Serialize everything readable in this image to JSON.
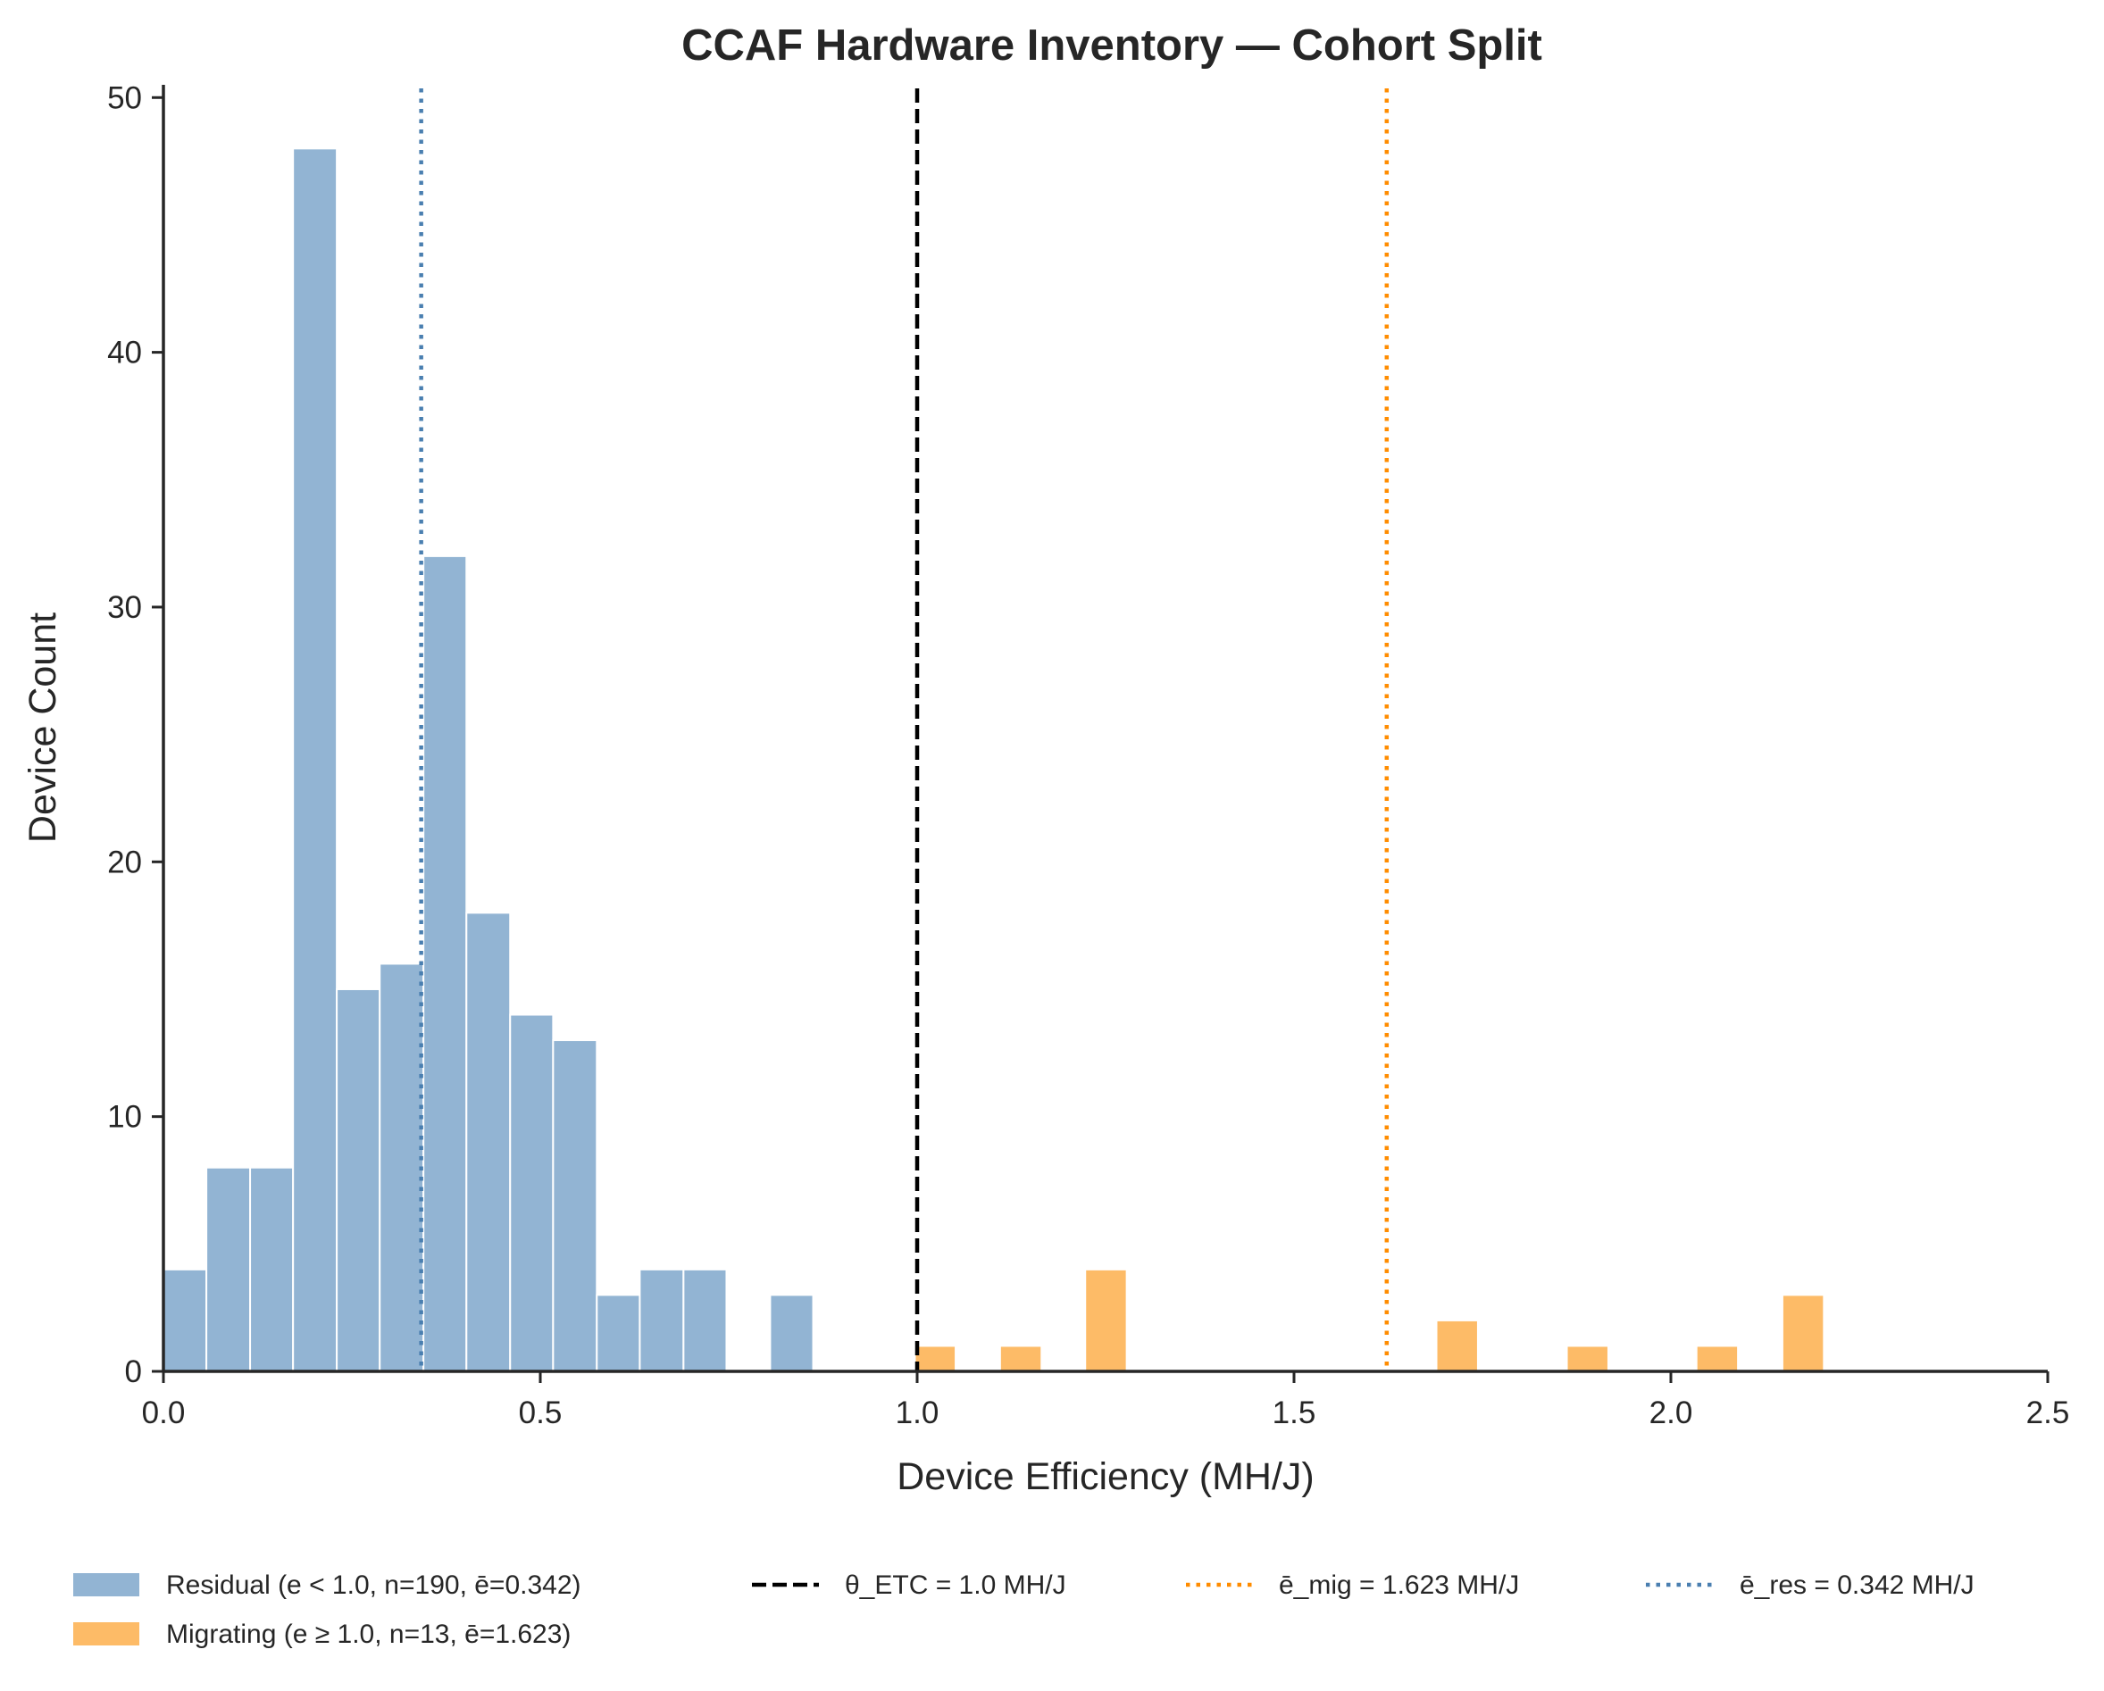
{
  "chart_data": {
    "type": "bar",
    "title": "CCAF Hardware Inventory — Cohort Split",
    "xlabel": "Device Efficiency (MH/J)",
    "ylabel": "Device Count",
    "xlim": [
      0.0,
      2.5
    ],
    "ylim": [
      0,
      50.5
    ],
    "xticks": [
      0.0,
      0.5,
      1.0,
      1.5,
      2.0,
      2.5
    ],
    "xtick_labels": [
      "0.0",
      "0.5",
      "1.0",
      "1.5",
      "2.0",
      "2.5"
    ],
    "yticks": [
      0,
      10,
      20,
      30,
      40,
      50
    ],
    "ytick_labels": [
      "0",
      "10",
      "20",
      "30",
      "40",
      "50"
    ],
    "series": [
      {
        "name": "Residual (e < 1.0, n=190, ē=0.342)",
        "color": "#92b4d3",
        "bins": [
          {
            "x0": 0.0,
            "x1": 0.057,
            "count": 4
          },
          {
            "x0": 0.057,
            "x1": 0.115,
            "count": 8
          },
          {
            "x0": 0.115,
            "x1": 0.172,
            "count": 8
          },
          {
            "x0": 0.172,
            "x1": 0.23,
            "count": 48
          },
          {
            "x0": 0.23,
            "x1": 0.287,
            "count": 15
          },
          {
            "x0": 0.287,
            "x1": 0.345,
            "count": 16
          },
          {
            "x0": 0.345,
            "x1": 0.402,
            "count": 32
          },
          {
            "x0": 0.402,
            "x1": 0.46,
            "count": 18
          },
          {
            "x0": 0.46,
            "x1": 0.517,
            "count": 14
          },
          {
            "x0": 0.517,
            "x1": 0.575,
            "count": 13
          },
          {
            "x0": 0.575,
            "x1": 0.632,
            "count": 3
          },
          {
            "x0": 0.632,
            "x1": 0.69,
            "count": 4
          },
          {
            "x0": 0.69,
            "x1": 0.747,
            "count": 4
          },
          {
            "x0": 0.805,
            "x1": 0.862,
            "count": 3
          }
        ]
      },
      {
        "name": "Migrating (e ≥ 1.0, n=13, ē=1.623)",
        "color": "#fdbb67",
        "bins": [
          {
            "x0": 0.997,
            "x1": 1.051,
            "count": 1
          },
          {
            "x0": 1.11,
            "x1": 1.165,
            "count": 1
          },
          {
            "x0": 1.223,
            "x1": 1.278,
            "count": 4
          },
          {
            "x0": 1.689,
            "x1": 1.744,
            "count": 2
          },
          {
            "x0": 1.862,
            "x1": 1.917,
            "count": 1
          },
          {
            "x0": 2.034,
            "x1": 2.089,
            "count": 1
          },
          {
            "x0": 2.148,
            "x1": 2.203,
            "count": 3
          }
        ]
      }
    ],
    "reference_lines": [
      {
        "label": "θ_ETC = 1.0 MH/J",
        "x": 1.0,
        "color": "#000000",
        "style": "dashed"
      },
      {
        "label": "ē_mig = 1.623 MH/J",
        "x": 1.623,
        "color": "#ff8c00",
        "style": "dotted"
      },
      {
        "label": "ē_res = 0.342 MH/J",
        "x": 0.342,
        "color": "#4a7fb0",
        "style": "dotted"
      }
    ],
    "legend_position": "bottom"
  }
}
